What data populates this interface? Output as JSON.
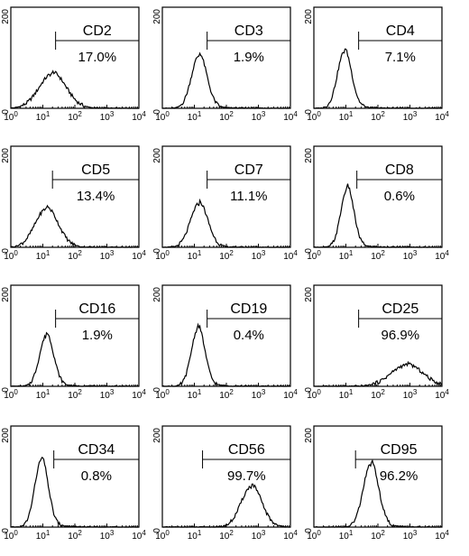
{
  "chart_data": [
    {
      "type": "histogram",
      "marker": "CD2",
      "percent": "17.0%",
      "peak_x": 20,
      "peak_height": 0.34,
      "width": 0.42,
      "gate_x": 25,
      "x_scale": "log",
      "xlim": [
        1,
        10000
      ],
      "y_ticks": [
        "0",
        "200"
      ]
    },
    {
      "type": "histogram",
      "marker": "CD3",
      "percent": "1.9%",
      "peak_x": 14,
      "peak_height": 0.52,
      "width": 0.24,
      "gate_x": 25,
      "x_scale": "log",
      "xlim": [
        1,
        10000
      ],
      "y_ticks": [
        "0",
        "200"
      ]
    },
    {
      "type": "histogram",
      "marker": "CD4",
      "percent": "7.1%",
      "peak_x": 9,
      "peak_height": 0.56,
      "width": 0.22,
      "gate_x": 25,
      "x_scale": "log",
      "xlim": [
        1,
        10000
      ],
      "y_ticks": [
        "0",
        "200"
      ]
    },
    {
      "type": "histogram",
      "marker": "CD5",
      "percent": "13.4%",
      "peak_x": 13,
      "peak_height": 0.38,
      "width": 0.36,
      "gate_x": 20,
      "x_scale": "log",
      "xlim": [
        1,
        10000
      ],
      "y_ticks": [
        "0",
        "200"
      ]
    },
    {
      "type": "histogram",
      "marker": "CD7",
      "percent": "11.1%",
      "peak_x": 14,
      "peak_height": 0.43,
      "width": 0.27,
      "gate_x": 25,
      "x_scale": "log",
      "xlim": [
        1,
        10000
      ],
      "y_ticks": [
        "0",
        "200"
      ]
    },
    {
      "type": "histogram",
      "marker": "CD8",
      "percent": "0.6%",
      "peak_x": 11,
      "peak_height": 0.58,
      "width": 0.2,
      "gate_x": 22,
      "x_scale": "log",
      "xlim": [
        1,
        10000
      ],
      "y_ticks": [
        "0",
        "200"
      ]
    },
    {
      "type": "histogram",
      "marker": "CD16",
      "percent": "1.9%",
      "peak_x": 13,
      "peak_height": 0.5,
      "width": 0.22,
      "gate_x": 25,
      "x_scale": "log",
      "xlim": [
        1,
        10000
      ],
      "y_ticks": [
        "0",
        "200"
      ]
    },
    {
      "type": "histogram",
      "marker": "CD19",
      "percent": "0.4%",
      "peak_x": 13,
      "peak_height": 0.57,
      "width": 0.21,
      "gate_x": 25,
      "x_scale": "log",
      "xlim": [
        1,
        10000
      ],
      "y_ticks": [
        "0",
        "200"
      ]
    },
    {
      "type": "histogram",
      "marker": "CD25",
      "percent": "96.9%",
      "peak_x": 800,
      "peak_height": 0.21,
      "width": 0.5,
      "gate_x": 25,
      "x_scale": "log",
      "xlim": [
        1,
        10000
      ],
      "y_ticks": [
        "0",
        "200"
      ]
    },
    {
      "type": "histogram",
      "marker": "CD34",
      "percent": "0.8%",
      "peak_x": 9,
      "peak_height": 0.66,
      "width": 0.21,
      "gate_x": 22,
      "x_scale": "log",
      "xlim": [
        1,
        10000
      ],
      "y_ticks": [
        "0",
        "200"
      ]
    },
    {
      "type": "histogram",
      "marker": "CD56",
      "percent": "99.7%",
      "peak_x": 600,
      "peak_height": 0.4,
      "width": 0.32,
      "gate_x": 18,
      "x_scale": "log",
      "xlim": [
        1,
        10000
      ],
      "y_ticks": [
        "0",
        "200"
      ]
    },
    {
      "type": "histogram",
      "marker": "CD95",
      "percent": "96.2%",
      "peak_x": 60,
      "peak_height": 0.62,
      "width": 0.24,
      "gate_x": 20,
      "x_scale": "log",
      "xlim": [
        1,
        10000
      ],
      "y_ticks": [
        "0",
        "200"
      ]
    }
  ]
}
